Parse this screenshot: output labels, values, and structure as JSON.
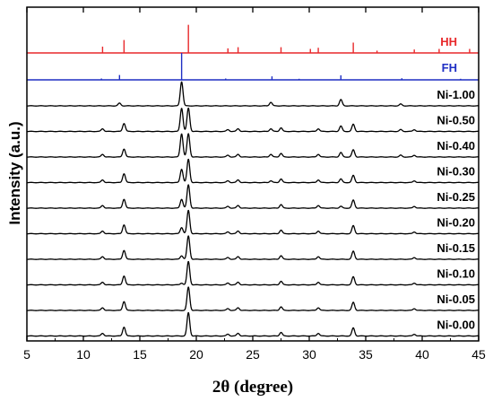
{
  "chart_data": {
    "type": "line",
    "title": "",
    "xlabel": "2θ (degree)",
    "ylabel": "Intensity (a.u.)",
    "xlim": [
      5,
      45
    ],
    "xticks": [
      5,
      10,
      15,
      20,
      25,
      30,
      35,
      40,
      45
    ],
    "grid": false,
    "legend": "none (series labels printed at right of each trace)",
    "colors": {
      "axis": "#000000",
      "trace": "#000000",
      "HH": "#e8292b",
      "FH": "#1f2fc4"
    },
    "reference_patterns": [
      {
        "name": "HH",
        "color": "#e8292b",
        "sticks": [
          {
            "x": 11.7,
            "h": 0.22
          },
          {
            "x": 13.6,
            "h": 0.45
          },
          {
            "x": 19.3,
            "h": 0.98
          },
          {
            "x": 22.8,
            "h": 0.16
          },
          {
            "x": 23.7,
            "h": 0.2
          },
          {
            "x": 27.5,
            "h": 0.2
          },
          {
            "x": 30.1,
            "h": 0.14
          },
          {
            "x": 30.8,
            "h": 0.18
          },
          {
            "x": 33.9,
            "h": 0.36
          },
          {
            "x": 36.0,
            "h": 0.08
          },
          {
            "x": 39.3,
            "h": 0.12
          },
          {
            "x": 41.5,
            "h": 0.14
          },
          {
            "x": 44.2,
            "h": 0.14
          }
        ]
      },
      {
        "name": "FH",
        "color": "#1f2fc4",
        "sticks": [
          {
            "x": 11.6,
            "h": 0.05
          },
          {
            "x": 13.2,
            "h": 0.18
          },
          {
            "x": 18.7,
            "h": 1.0
          },
          {
            "x": 22.6,
            "h": 0.05
          },
          {
            "x": 26.7,
            "h": 0.13
          },
          {
            "x": 29.1,
            "h": 0.04
          },
          {
            "x": 32.8,
            "h": 0.17
          },
          {
            "x": 38.2,
            "h": 0.06
          },
          {
            "x": 43.4,
            "h": 0.04
          }
        ]
      }
    ],
    "series": [
      {
        "name": "Ni-1.00",
        "peaks": [
          {
            "x": 13.2,
            "h": 3
          },
          {
            "x": 18.7,
            "h": 27
          },
          {
            "x": 26.6,
            "h": 4
          },
          {
            "x": 32.8,
            "h": 7
          },
          {
            "x": 38.1,
            "h": 2
          }
        ]
      },
      {
        "name": "Ni-0.50",
        "peaks": [
          {
            "x": 11.7,
            "h": 3
          },
          {
            "x": 13.6,
            "h": 9
          },
          {
            "x": 18.7,
            "h": 26
          },
          {
            "x": 19.3,
            "h": 26
          },
          {
            "x": 22.8,
            "h": 2
          },
          {
            "x": 23.7,
            "h": 3
          },
          {
            "x": 26.6,
            "h": 3
          },
          {
            "x": 27.5,
            "h": 4
          },
          {
            "x": 30.8,
            "h": 3
          },
          {
            "x": 32.8,
            "h": 6
          },
          {
            "x": 33.9,
            "h": 8
          },
          {
            "x": 38.1,
            "h": 2
          },
          {
            "x": 39.3,
            "h": 2
          }
        ]
      },
      {
        "name": "Ni-0.40",
        "peaks": [
          {
            "x": 11.7,
            "h": 3
          },
          {
            "x": 13.6,
            "h": 9
          },
          {
            "x": 18.7,
            "h": 26
          },
          {
            "x": 19.3,
            "h": 26
          },
          {
            "x": 22.8,
            "h": 2
          },
          {
            "x": 23.7,
            "h": 3
          },
          {
            "x": 26.6,
            "h": 3
          },
          {
            "x": 27.5,
            "h": 4
          },
          {
            "x": 30.8,
            "h": 3
          },
          {
            "x": 32.8,
            "h": 5
          },
          {
            "x": 33.9,
            "h": 8
          },
          {
            "x": 38.1,
            "h": 2
          },
          {
            "x": 39.3,
            "h": 2
          }
        ]
      },
      {
        "name": "Ni-0.30",
        "peaks": [
          {
            "x": 11.7,
            "h": 3
          },
          {
            "x": 13.6,
            "h": 10
          },
          {
            "x": 18.7,
            "h": 15
          },
          {
            "x": 19.3,
            "h": 26
          },
          {
            "x": 22.8,
            "h": 2
          },
          {
            "x": 23.7,
            "h": 3
          },
          {
            "x": 26.6,
            "h": 2
          },
          {
            "x": 27.5,
            "h": 4
          },
          {
            "x": 30.8,
            "h": 3
          },
          {
            "x": 32.8,
            "h": 4
          },
          {
            "x": 33.9,
            "h": 8
          },
          {
            "x": 39.3,
            "h": 2
          }
        ]
      },
      {
        "name": "Ni-0.25",
        "peaks": [
          {
            "x": 11.7,
            "h": 3
          },
          {
            "x": 13.6,
            "h": 10
          },
          {
            "x": 18.7,
            "h": 10
          },
          {
            "x": 19.3,
            "h": 26
          },
          {
            "x": 22.8,
            "h": 2
          },
          {
            "x": 23.7,
            "h": 3
          },
          {
            "x": 27.5,
            "h": 4
          },
          {
            "x": 30.8,
            "h": 3
          },
          {
            "x": 32.8,
            "h": 2
          },
          {
            "x": 33.9,
            "h": 9
          },
          {
            "x": 39.3,
            "h": 2
          }
        ]
      },
      {
        "name": "Ni-0.20",
        "peaks": [
          {
            "x": 11.7,
            "h": 3
          },
          {
            "x": 13.6,
            "h": 10
          },
          {
            "x": 18.7,
            "h": 7
          },
          {
            "x": 19.3,
            "h": 26
          },
          {
            "x": 22.8,
            "h": 2
          },
          {
            "x": 23.7,
            "h": 3
          },
          {
            "x": 27.5,
            "h": 4
          },
          {
            "x": 30.8,
            "h": 3
          },
          {
            "x": 33.9,
            "h": 9
          },
          {
            "x": 39.3,
            "h": 2
          }
        ]
      },
      {
        "name": "Ni-0.15",
        "peaks": [
          {
            "x": 11.7,
            "h": 3
          },
          {
            "x": 13.6,
            "h": 10
          },
          {
            "x": 18.7,
            "h": 4
          },
          {
            "x": 19.3,
            "h": 26
          },
          {
            "x": 22.8,
            "h": 2
          },
          {
            "x": 23.7,
            "h": 3
          },
          {
            "x": 27.5,
            "h": 4
          },
          {
            "x": 30.8,
            "h": 3
          },
          {
            "x": 33.9,
            "h": 9
          },
          {
            "x": 39.3,
            "h": 2
          }
        ]
      },
      {
        "name": "Ni-0.10",
        "peaks": [
          {
            "x": 11.7,
            "h": 3
          },
          {
            "x": 13.6,
            "h": 10
          },
          {
            "x": 18.7,
            "h": 2
          },
          {
            "x": 19.3,
            "h": 26
          },
          {
            "x": 22.8,
            "h": 2
          },
          {
            "x": 23.7,
            "h": 3
          },
          {
            "x": 27.5,
            "h": 4
          },
          {
            "x": 30.8,
            "h": 3
          },
          {
            "x": 33.9,
            "h": 9
          },
          {
            "x": 39.3,
            "h": 2
          }
        ]
      },
      {
        "name": "Ni-0.05",
        "peaks": [
          {
            "x": 11.7,
            "h": 3
          },
          {
            "x": 13.6,
            "h": 10
          },
          {
            "x": 19.3,
            "h": 26
          },
          {
            "x": 22.8,
            "h": 2
          },
          {
            "x": 23.7,
            "h": 3
          },
          {
            "x": 27.5,
            "h": 4
          },
          {
            "x": 30.8,
            "h": 3
          },
          {
            "x": 33.9,
            "h": 9
          },
          {
            "x": 39.3,
            "h": 2
          }
        ]
      },
      {
        "name": "Ni-0.00",
        "peaks": [
          {
            "x": 11.7,
            "h": 3
          },
          {
            "x": 13.6,
            "h": 10
          },
          {
            "x": 19.3,
            "h": 26
          },
          {
            "x": 22.8,
            "h": 2
          },
          {
            "x": 23.7,
            "h": 3
          },
          {
            "x": 27.5,
            "h": 4
          },
          {
            "x": 30.8,
            "h": 3
          },
          {
            "x": 33.9,
            "h": 9
          },
          {
            "x": 39.3,
            "h": 2
          }
        ]
      }
    ]
  }
}
